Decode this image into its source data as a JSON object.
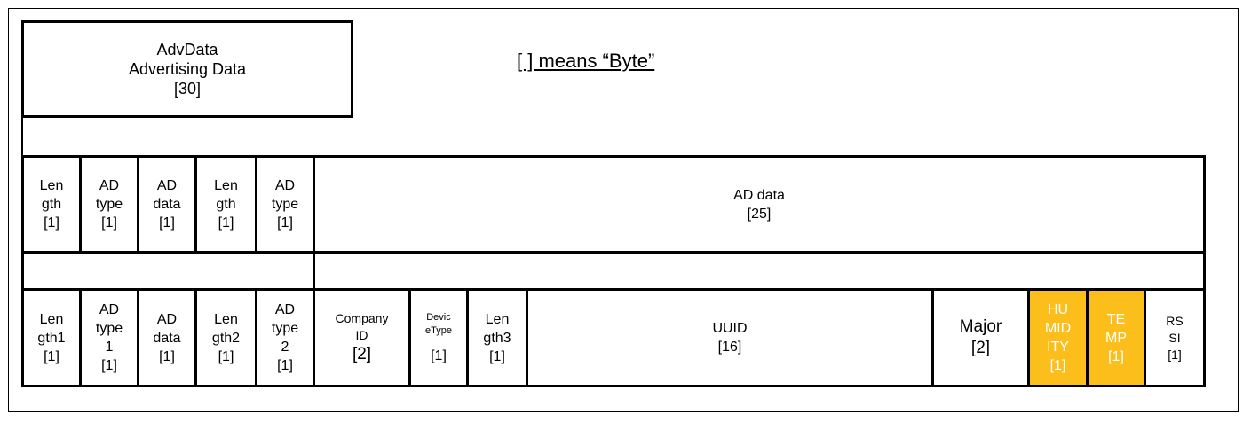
{
  "header": {
    "title": "AdvData\nAdvertising Data\n[30]",
    "note": "[ ] means “Byte”"
  },
  "row1": {
    "cells": [
      "Len\ngth\n[1]",
      "AD\ntype\n[1]",
      "AD\ndata\n[1]",
      "Len\ngth\n[1]",
      "AD\ntype\n[1]",
      "AD data\n[25]"
    ]
  },
  "row3": {
    "cells": [
      "Len\ngth1\n[1]",
      "AD\ntype\n1\n[1]",
      "AD\ndata\n[1]",
      "Len\ngth2\n[1]",
      "AD\ntype\n2\n[1]",
      "Company\nID",
      "[2]",
      "Devic\neType",
      "[1]",
      "Len\ngth3\n[1]",
      "UUID\n[16]",
      "Major\n[2]",
      "HU\nMID\nITY\n[1]",
      "TE\nMP\n[1]",
      "RS\nSI\n[1]"
    ],
    "highlight_color": "#fcbe1a"
  }
}
